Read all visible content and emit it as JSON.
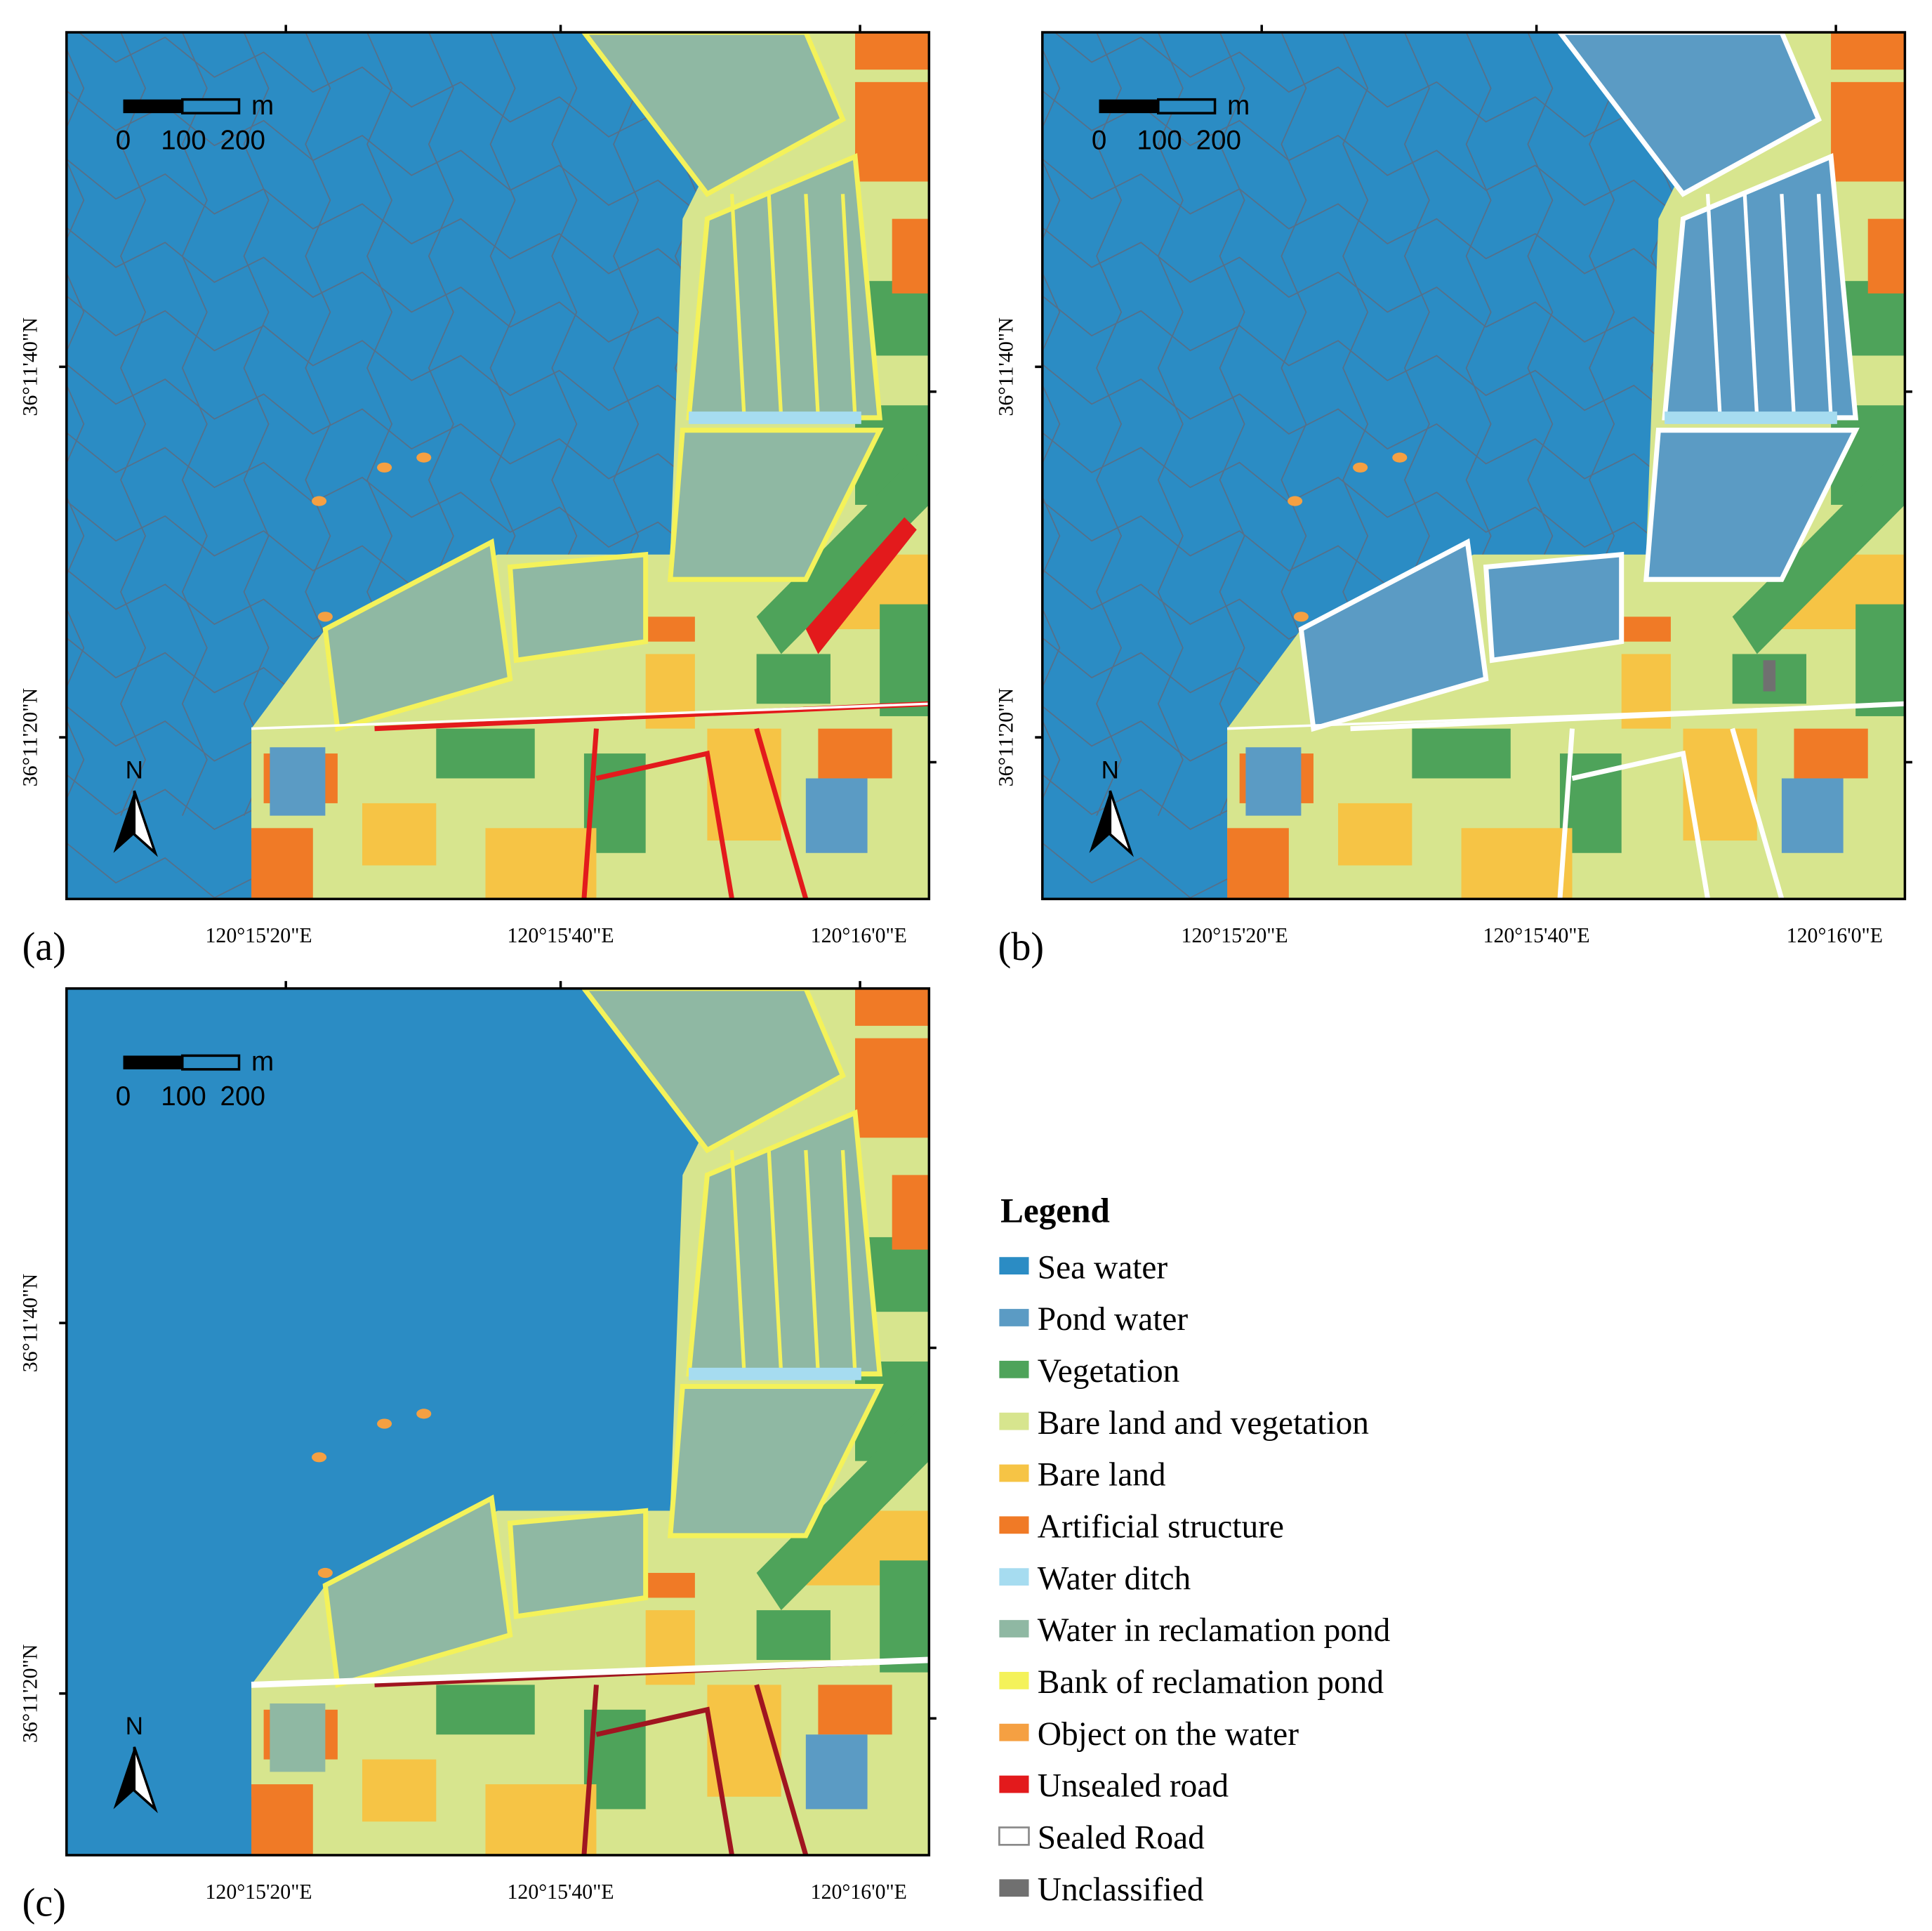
{
  "panels": [
    {
      "label": "(a)"
    },
    {
      "label": "(b)"
    },
    {
      "label": "(c)"
    }
  ],
  "scale_bar": {
    "labels": [
      "0",
      "100",
      "200"
    ],
    "unit": "m"
  },
  "north": "N",
  "x_labels": [
    "120°15'20\"E",
    "120°15'40\"E",
    "120°16'0\"E"
  ],
  "y_labels": [
    "36°11'40\"N",
    "36°11'20\"N"
  ],
  "legend": {
    "title": "Legend",
    "items": [
      {
        "label": "Sea water",
        "color": "#2b8cc4"
      },
      {
        "label": "Pond water",
        "color": "#5b9bc4"
      },
      {
        "label": "Vegetation",
        "color": "#4ea35a"
      },
      {
        "label": "Bare land and vegetation",
        "color": "#d7e58e"
      },
      {
        "label": "Bare land",
        "color": "#f6c445"
      },
      {
        "label": "Artificial structure",
        "color": "#f07a26"
      },
      {
        "label": "Water ditch",
        "color": "#a6dcf0"
      },
      {
        "label": "Water in reclamation pond",
        "color": "#8fb8a3"
      },
      {
        "label": "Bank of reclamation pond",
        "color": "#f4f25a"
      },
      {
        "label": "Object on the water",
        "color": "#f5a042"
      },
      {
        "label": "Unsealed road",
        "color": "#e31a1c"
      },
      {
        "label": "Sealed Road",
        "color": "#ffffff"
      },
      {
        "label": "Unclassified",
        "color": "#707070"
      }
    ]
  }
}
